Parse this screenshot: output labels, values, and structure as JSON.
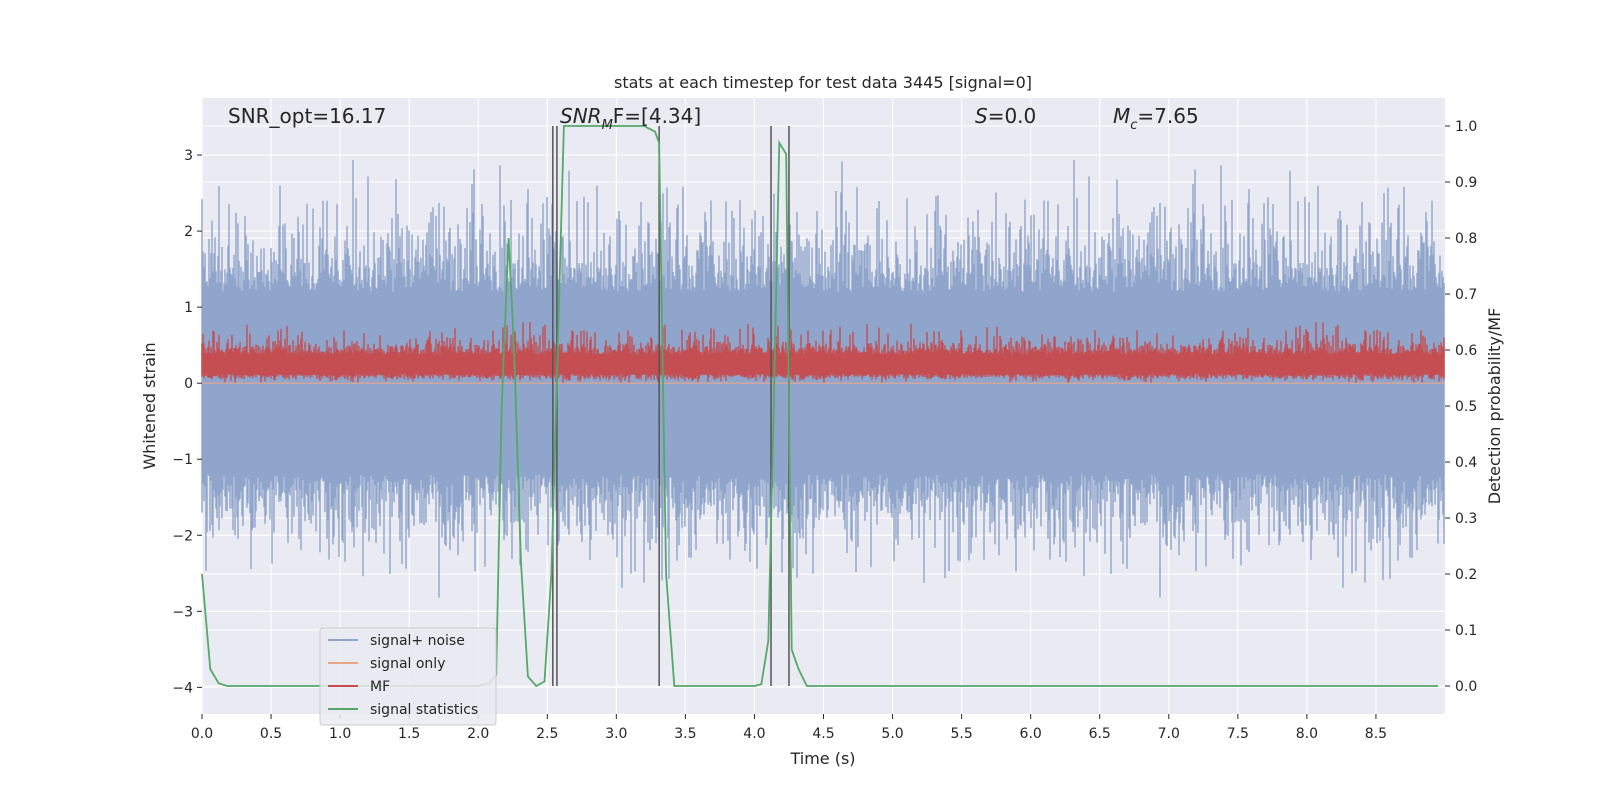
{
  "chart_data": {
    "type": "line",
    "title": "stats at each timestep for test data 3445 [signal=0]",
    "xlabel": "Time (s)",
    "ylabel_left": "Whitened strain",
    "ylabel_right": "Detection probability/MF",
    "xlim": [
      0.0,
      9.0
    ],
    "ylim_left": [
      -4.35,
      3.75
    ],
    "ylim_right": [
      -0.05,
      1.05
    ],
    "xticks": [
      "0.0",
      "0.5",
      "1.0",
      "1.5",
      "2.0",
      "2.5",
      "3.0",
      "3.5",
      "4.0",
      "4.5",
      "5.0",
      "5.5",
      "6.0",
      "6.5",
      "7.0",
      "7.5",
      "8.0",
      "8.5"
    ],
    "yticks_left": [
      "−4",
      "−3",
      "−2",
      "−1",
      "0",
      "1",
      "2",
      "3"
    ],
    "yticks_right": [
      "0.0",
      "0.1",
      "0.2",
      "0.3",
      "0.4",
      "0.5",
      "0.6",
      "0.7",
      "0.8",
      "0.9",
      "1.0"
    ],
    "grid": true,
    "legend_position": "lower-left",
    "annotations": {
      "snr_opt": "SNR_opt=16.17",
      "snr_mf_main": "SNR",
      "snr_mf_sub": "M",
      "snr_mf_tail": "F=[4.34]",
      "s_main": "S",
      "s_tail": "=0.0",
      "mc_main": "M",
      "mc_sub": "c",
      "mc_tail": "=7.65"
    },
    "series": [
      {
        "name": "signal+ noise",
        "color": "#8fa5cb",
        "axis": "left",
        "description_range": [
          -2.9,
          3.0
        ]
      },
      {
        "name": "signal only",
        "color": "#e8a689",
        "axis": "left",
        "values_constant": 0.0
      },
      {
        "name": "MF",
        "color": "#c44e52",
        "axis": "left",
        "description_range": [
          0.0,
          0.9
        ]
      },
      {
        "name": "signal statistics",
        "color": "#55a868",
        "axis": "right",
        "x": [
          0.0,
          0.06,
          0.12,
          0.18,
          0.25,
          0.5,
          1.0,
          1.5,
          2.0,
          2.08,
          2.13,
          2.17,
          2.22,
          2.26,
          2.31,
          2.36,
          2.42,
          2.48,
          2.53,
          2.57,
          2.62,
          2.7,
          3.0,
          3.2,
          3.28,
          3.31,
          3.36,
          3.42,
          3.48,
          3.55,
          4.0,
          4.05,
          4.1,
          4.14,
          4.18,
          4.23,
          4.27,
          4.32,
          4.38,
          4.45,
          5.0,
          6.0,
          7.0,
          8.0,
          8.95
        ],
        "values": [
          0.2,
          0.03,
          0.005,
          0.0,
          0.0,
          0.0,
          0.0,
          0.0,
          0.0,
          0.005,
          0.02,
          0.5,
          0.8,
          0.6,
          0.22,
          0.017,
          0.0,
          0.008,
          0.2,
          0.55,
          1.0,
          1.0,
          1.0,
          1.0,
          0.99,
          0.97,
          0.2,
          0.0,
          0.0,
          0.0,
          0.0,
          0.003,
          0.08,
          0.5,
          0.97,
          0.95,
          0.065,
          0.03,
          0.0,
          0.0,
          0.0,
          0.0,
          0.0,
          0.0,
          0.0
        ]
      }
    ],
    "vertical_lines_x": [
      2.54,
      2.57,
      3.31,
      4.12,
      4.25
    ]
  }
}
